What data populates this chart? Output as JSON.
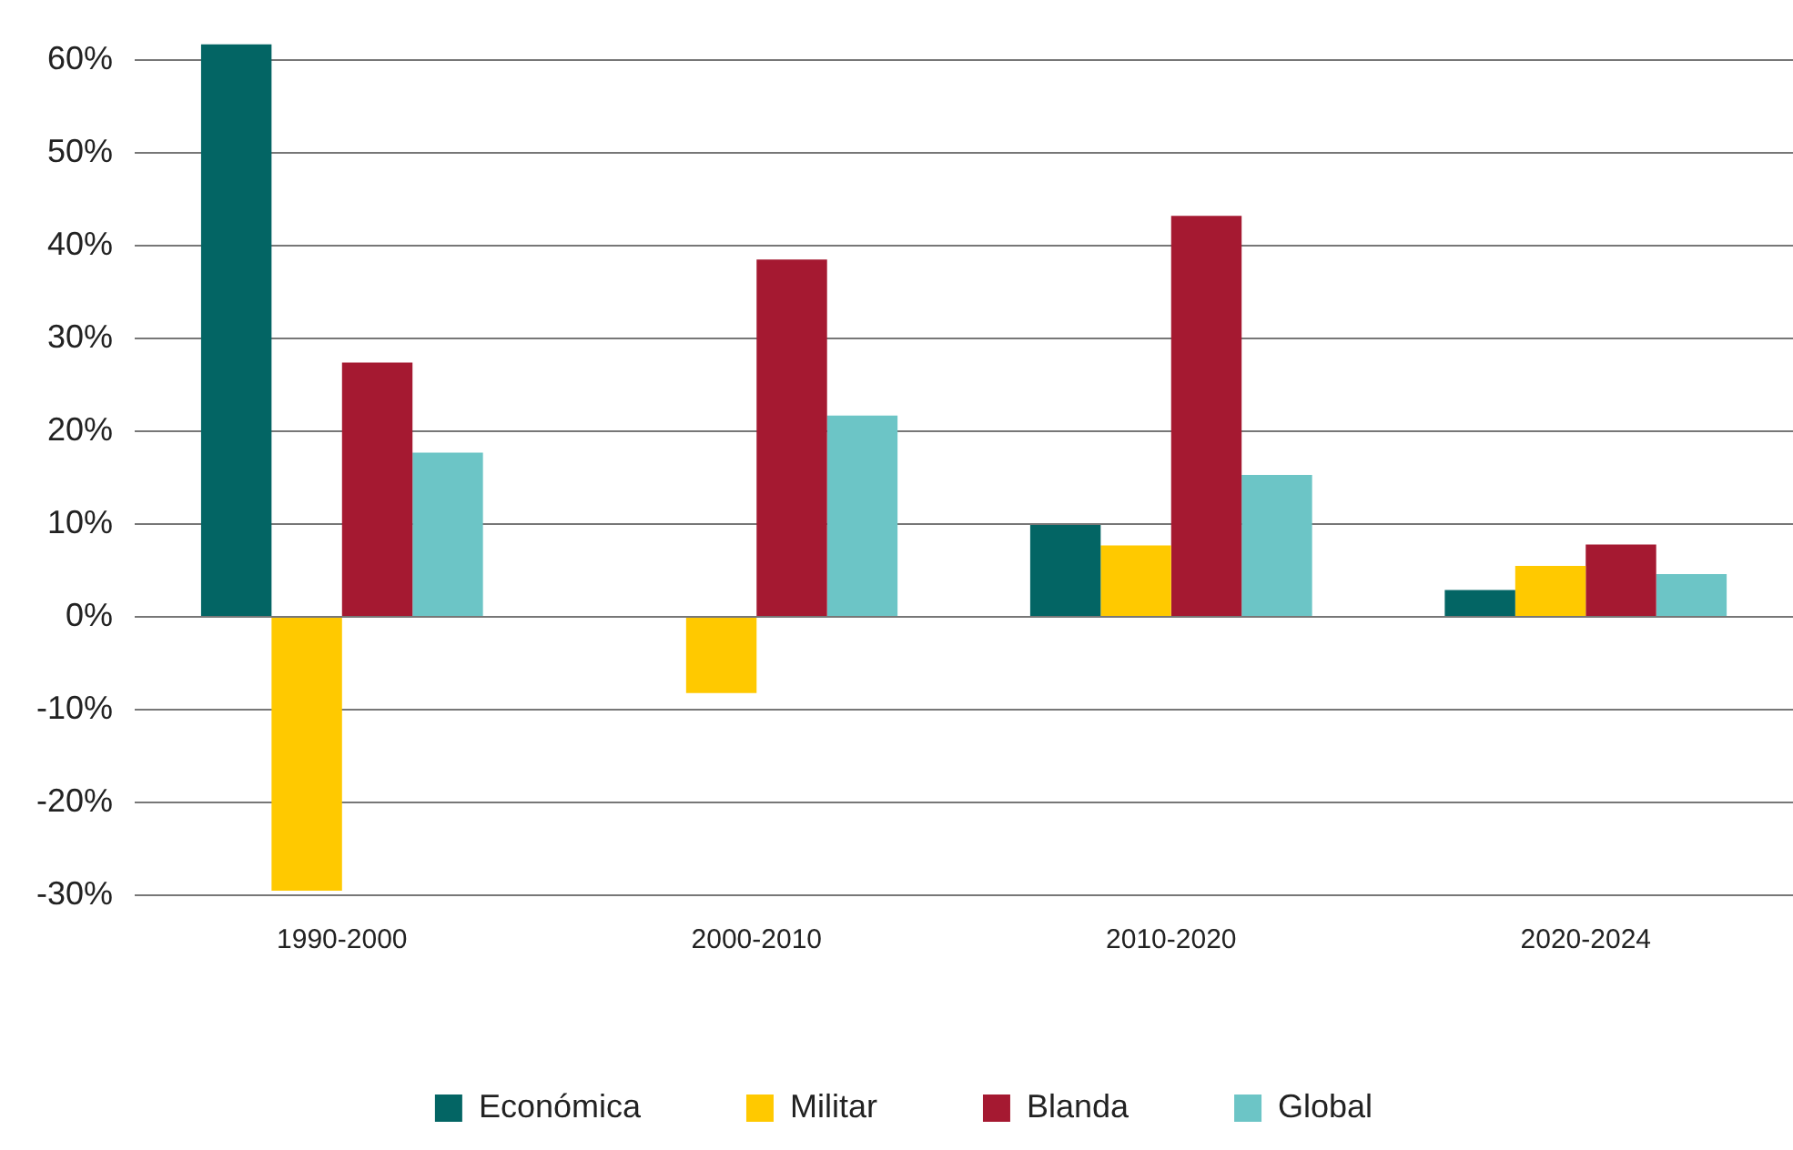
{
  "chart_data": {
    "type": "bar",
    "categories": [
      "1990-2000",
      "2000-2010",
      "2010-2020",
      "2020-2024"
    ],
    "series": [
      {
        "name": "Económica",
        "color": "#036564",
        "values": [
          61.7,
          0,
          9.9,
          2.9
        ]
      },
      {
        "name": "Militar",
        "color": "#ffc900",
        "values": [
          -29.5,
          -8.2,
          7.7,
          5.5
        ]
      },
      {
        "name": "Blanda",
        "color": "#a51931",
        "values": [
          27.4,
          38.5,
          43.2,
          7.8
        ]
      },
      {
        "name": "Global",
        "color": "#6cc5c6",
        "values": [
          17.7,
          21.7,
          15.3,
          4.6
        ]
      }
    ],
    "ylim": [
      -30,
      62
    ],
    "yticks": [
      {
        "value": -30,
        "label": "-30%"
      },
      {
        "value": -20,
        "label": "-20%"
      },
      {
        "value": -10,
        "label": "-10%"
      },
      {
        "value": 0,
        "label": "0%"
      },
      {
        "value": 10,
        "label": "10%"
      },
      {
        "value": 20,
        "label": "20%"
      },
      {
        "value": 30,
        "label": "30%"
      },
      {
        "value": 40,
        "label": "40%"
      },
      {
        "value": 50,
        "label": "50%"
      },
      {
        "value": 60,
        "label": "60%"
      }
    ],
    "grid": "y",
    "legend": "bottom"
  }
}
